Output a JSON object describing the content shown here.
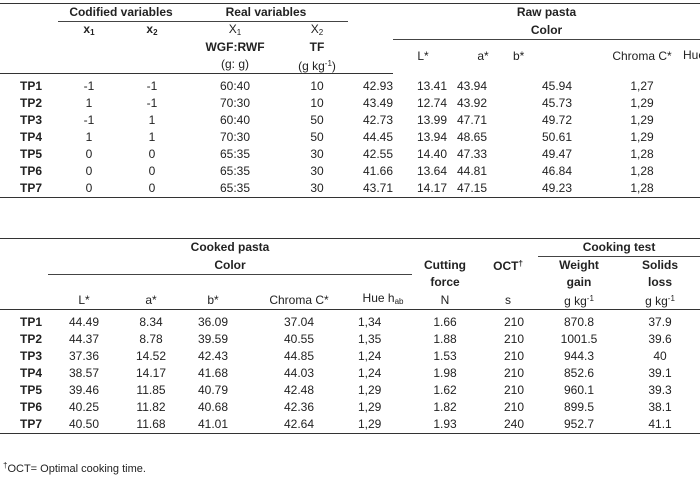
{
  "raw_table": {
    "group_headers": {
      "codified": "Codified variables",
      "real": "Real variables",
      "raw_pasta": "Raw pasta",
      "color": "Color"
    },
    "x1": "x",
    "x1_sub": "1",
    "x2": "x",
    "x2_sub": "2",
    "X1": "X",
    "X1_sub": "1",
    "X2": "X",
    "X2_sub": "2",
    "wgf_label": "WGF:RWF",
    "wgf_unit": "(g: g)",
    "tf_label": "TF",
    "tf_unit_pre": "(g kg",
    "tf_unit_sup": "-1",
    "tf_unit_post": ")",
    "L": "L*",
    "a": "a*",
    "b": "b*",
    "chroma": "Chroma C*",
    "hue": "Hue h",
    "hue_sub": "ab",
    "rows": [
      {
        "id": "TP1",
        "x1": "-1",
        "x2": "-1",
        "X1": "60:40",
        "X2": "10",
        "L": "42.93",
        "a": "13.41",
        "b": "43.94",
        "C": "45.94",
        "h": "1,27"
      },
      {
        "id": "TP2",
        "x1": "1",
        "x2": "-1",
        "X1": "70:30",
        "X2": "10",
        "L": "43.49",
        "a": "12.74",
        "b": "43.92",
        "C": "45.73",
        "h": "1,29"
      },
      {
        "id": "TP3",
        "x1": "-1",
        "x2": "1",
        "X1": "60:40",
        "X2": "50",
        "L": "42.73",
        "a": "13.99",
        "b": "47.71",
        "C": "49.72",
        "h": "1,29"
      },
      {
        "id": "TP4",
        "x1": "1",
        "x2": "1",
        "X1": "70:30",
        "X2": "50",
        "L": "44.45",
        "a": "13.94",
        "b": "48.65",
        "C": "50.61",
        "h": "1,29"
      },
      {
        "id": "TP5",
        "x1": "0",
        "x2": "0",
        "X1": "65:35",
        "X2": "30",
        "L": "42.55",
        "a": "14.40",
        "b": "47.33",
        "C": "49.47",
        "h": "1,28"
      },
      {
        "id": "TP6",
        "x1": "0",
        "x2": "0",
        "X1": "65:35",
        "X2": "30",
        "L": "41.66",
        "a": "13.64",
        "b": "44.81",
        "C": "46.84",
        "h": "1,28"
      },
      {
        "id": "TP7",
        "x1": "0",
        "x2": "0",
        "X1": "65:35",
        "X2": "30",
        "L": "43.71",
        "a": "14.17",
        "b": "47.15",
        "C": "49.23",
        "h": "1,28"
      }
    ]
  },
  "cooked_table": {
    "group_headers": {
      "cooked_pasta": "Cooked pasta",
      "color": "Color",
      "cutting": "Cutting",
      "force": "force",
      "oct": "OCT",
      "oct_sup": "†",
      "cooking_test": "Cooking test",
      "weight": "Weight",
      "gain": "gain",
      "solids": "Solids",
      "loss": "loss"
    },
    "L": "L*",
    "a": "a*",
    "b": "b*",
    "chroma": "Chroma C*",
    "hue": "Hue h",
    "hue_sub": "ab",
    "unit_N": "N",
    "unit_s": "s",
    "unit_gkg_pre": "g kg",
    "unit_gkg_sup": "-1",
    "rows": [
      {
        "id": "TP1",
        "L": "44.49",
        "a": "8.34",
        "b": "36.09",
        "C": "37.04",
        "h": "1,34",
        "N": "1.66",
        "s": "210",
        "wg": "870.8",
        "sl": "37.9"
      },
      {
        "id": "TP2",
        "L": "44.37",
        "a": "8.78",
        "b": "39.59",
        "C": "40.55",
        "h": "1,35",
        "N": "1.88",
        "s": "210",
        "wg": "1001.5",
        "sl": "39.6"
      },
      {
        "id": "TP3",
        "L": "37.36",
        "a": "14.52",
        "b": "42.43",
        "C": "44.85",
        "h": "1,24",
        "N": "1.53",
        "s": "210",
        "wg": "944.3",
        "sl": "40"
      },
      {
        "id": "TP4",
        "L": "38.57",
        "a": "14.17",
        "b": "41.68",
        "C": "44.03",
        "h": "1,24",
        "N": "1.98",
        "s": "210",
        "wg": "852.6",
        "sl": "39.1"
      },
      {
        "id": "TP5",
        "L": "39.46",
        "a": "11.85",
        "b": "40.79",
        "C": "42.48",
        "h": "1,29",
        "N": "1.62",
        "s": "210",
        "wg": "960.1",
        "sl": "39.3"
      },
      {
        "id": "TP6",
        "L": "40.25",
        "a": "11.82",
        "b": "40.68",
        "C": "42.36",
        "h": "1,29",
        "N": "1.82",
        "s": "210",
        "wg": "899.5",
        "sl": "38.1"
      },
      {
        "id": "TP7",
        "L": "40.50",
        "a": "11.68",
        "b": "41.01",
        "C": "42.64",
        "h": "1,29",
        "N": "1.93",
        "s": "240",
        "wg": "952.7",
        "sl": "41.1"
      }
    ]
  },
  "footnote_mark": "†",
  "footnote_text": "OCT= Optimal cooking time."
}
